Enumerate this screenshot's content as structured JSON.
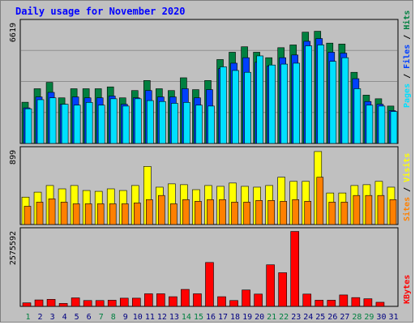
{
  "title": "Daily usage for November 2020",
  "colors": {
    "background": "#c0c0c0",
    "panel": "#c0c0c0",
    "grid": "#8f8f8f",
    "hits": "#008040",
    "files": "#0040ff",
    "pages": "#00e0ff",
    "visits": "#ffff00",
    "sites": "#ff8000",
    "kbytes": "#ff0000",
    "weekday_label": "#000080",
    "weekend_label": "#008040"
  },
  "chart_data": [
    {
      "type": "bar",
      "panel": "hits-files-pages",
      "title": "Daily usage for November 2020",
      "ymax_label": "6619",
      "ylim": [
        0,
        6619
      ],
      "legend": [
        {
          "name": "Pages",
          "color": "#00e0ff"
        },
        {
          "name": "Files",
          "color": "#0040ff"
        },
        {
          "name": "Hits",
          "color": "#008040"
        }
      ],
      "categories": [
        "1",
        "2",
        "3",
        "4",
        "5",
        "6",
        "7",
        "8",
        "9",
        "10",
        "11",
        "12",
        "13",
        "14",
        "15",
        "16",
        "17",
        "18",
        "19",
        "20",
        "21",
        "22",
        "23",
        "24",
        "25",
        "26",
        "27",
        "28",
        "29",
        "30",
        "31"
      ],
      "weekend_days": [
        "1",
        "7",
        "8",
        "14",
        "15",
        "21",
        "22",
        "28",
        "29"
      ],
      "series": [
        {
          "name": "Hits",
          "values": [
            2260,
            3000,
            3350,
            2500,
            3000,
            3000,
            3000,
            3100,
            2500,
            2900,
            3450,
            3000,
            2900,
            3600,
            2950,
            3450,
            4600,
            5000,
            5300,
            5000,
            4700,
            5250,
            5400,
            6100,
            6150,
            5500,
            5450,
            3900,
            2650,
            2450,
            2050
          ]
        },
        {
          "name": "Files",
          "values": [
            1950,
            2550,
            2800,
            2150,
            2550,
            2500,
            2500,
            2600,
            2150,
            2500,
            2900,
            2550,
            2550,
            3000,
            2500,
            2950,
            4100,
            4400,
            4700,
            4450,
            4250,
            4700,
            4850,
            5600,
            5750,
            5000,
            4950,
            3550,
            2300,
            2150,
            1800
          ]
        },
        {
          "name": "Pages",
          "values": [
            1900,
            2400,
            2500,
            2150,
            2100,
            2250,
            2100,
            2450,
            2050,
            2450,
            2350,
            2300,
            2200,
            2250,
            2100,
            2050,
            4200,
            4000,
            3900,
            4800,
            4300,
            4350,
            4400,
            5350,
            5400,
            4500,
            4700,
            3000,
            2100,
            2050,
            1750
          ]
        }
      ]
    },
    {
      "type": "bar",
      "panel": "visits-sites",
      "ymax_label": "899",
      "ylim": [
        0,
        899
      ],
      "legend": [
        {
          "name": "Sites",
          "color": "#ff8000"
        },
        {
          "name": "Visits",
          "color": "#ffff00"
        }
      ],
      "categories": [
        "1",
        "2",
        "3",
        "4",
        "5",
        "6",
        "7",
        "8",
        "9",
        "10",
        "11",
        "12",
        "13",
        "14",
        "15",
        "16",
        "17",
        "18",
        "19",
        "20",
        "21",
        "22",
        "23",
        "24",
        "25",
        "26",
        "27",
        "28",
        "29",
        "30",
        "31"
      ],
      "series": [
        {
          "name": "Visits",
          "values": [
            330,
            390,
            470,
            430,
            470,
            410,
            400,
            430,
            410,
            470,
            700,
            450,
            490,
            480,
            420,
            470,
            460,
            500,
            460,
            450,
            470,
            570,
            520,
            520,
            880,
            380,
            380,
            470,
            480,
            520,
            450
          ]
        },
        {
          "name": "Sites",
          "values": [
            220,
            270,
            310,
            270,
            250,
            250,
            250,
            250,
            250,
            260,
            300,
            350,
            250,
            300,
            280,
            300,
            300,
            270,
            270,
            290,
            290,
            280,
            300,
            280,
            570,
            270,
            270,
            350,
            350,
            350,
            300
          ]
        }
      ]
    },
    {
      "type": "bar",
      "panel": "kbytes",
      "ymax_label": "2575592",
      "ylim": [
        0,
        2575592
      ],
      "legend": [
        {
          "name": "KBytes",
          "color": "#ff0000"
        }
      ],
      "categories": [
        "1",
        "2",
        "3",
        "4",
        "5",
        "6",
        "7",
        "8",
        "9",
        "10",
        "11",
        "12",
        "13",
        "14",
        "15",
        "16",
        "17",
        "18",
        "19",
        "20",
        "21",
        "22",
        "23",
        "24",
        "25",
        "26",
        "27",
        "28",
        "29",
        "30",
        "31"
      ],
      "series": [
        {
          "name": "KBytes",
          "values": [
            120000,
            220000,
            240000,
            100000,
            290000,
            200000,
            200000,
            210000,
            280000,
            280000,
            430000,
            430000,
            330000,
            580000,
            430000,
            1500000,
            330000,
            200000,
            560000,
            420000,
            1420000,
            1150000,
            2560000,
            420000,
            210000,
            210000,
            390000,
            300000,
            260000,
            140000,
            0
          ]
        }
      ]
    }
  ]
}
